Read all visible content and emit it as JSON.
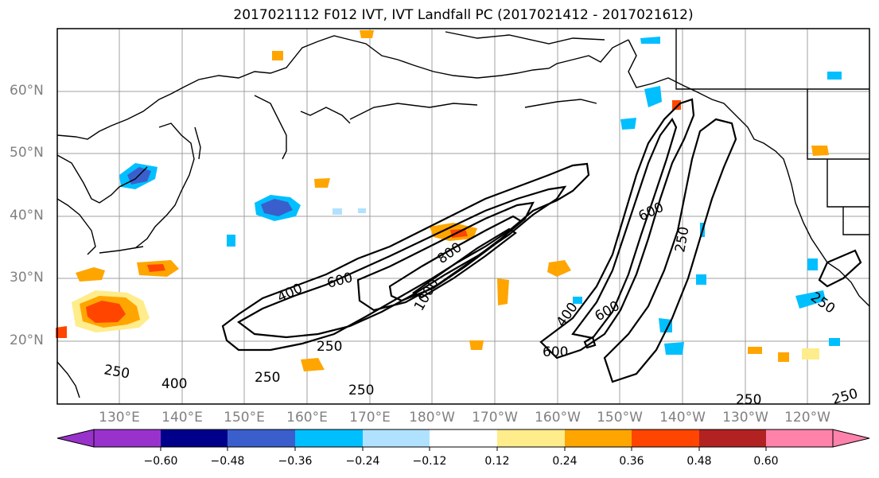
{
  "title": "2017021112 F012 IVT, IVT Landfall PC (2017021412 - 2017021612)",
  "lat_labels": [
    "60°N",
    "50°N",
    "40°N",
    "30°N",
    "20°N"
  ],
  "lon_labels": [
    "130°E",
    "140°E",
    "150°E",
    "160°E",
    "170°E",
    "180°W",
    "170°W",
    "160°W",
    "150°W",
    "140°W",
    "130°W",
    "120°W"
  ],
  "contour_labels": [
    "250",
    "250",
    "250",
    "250",
    "250",
    "250",
    "400",
    "400",
    "600",
    "600",
    "600",
    "600",
    "800",
    "1000",
    "400",
    "250",
    "250"
  ],
  "colorbar": {
    "tick_labels": [
      "−0.60",
      "−0.48",
      "−0.36",
      "−0.24",
      "−0.12",
      "0.12",
      "0.24",
      "0.36",
      "0.48",
      "0.60"
    ],
    "colors": [
      "#9932cc",
      "#00008b",
      "#3a5fcd",
      "#00bfff",
      "#b0e2ff",
      "#ffffff",
      "#ffec8b",
      "#ffa500",
      "#ff4500",
      "#b22222",
      "#ff82ab"
    ]
  },
  "shading_colors": {
    "neg_light": "#b0e2ff",
    "neg_mid": "#00bfff",
    "neg_dark": "#3a5fcd",
    "pos_light": "#ffec8b",
    "pos_mid": "#ffa500",
    "pos_dark": "#ff4500"
  }
}
